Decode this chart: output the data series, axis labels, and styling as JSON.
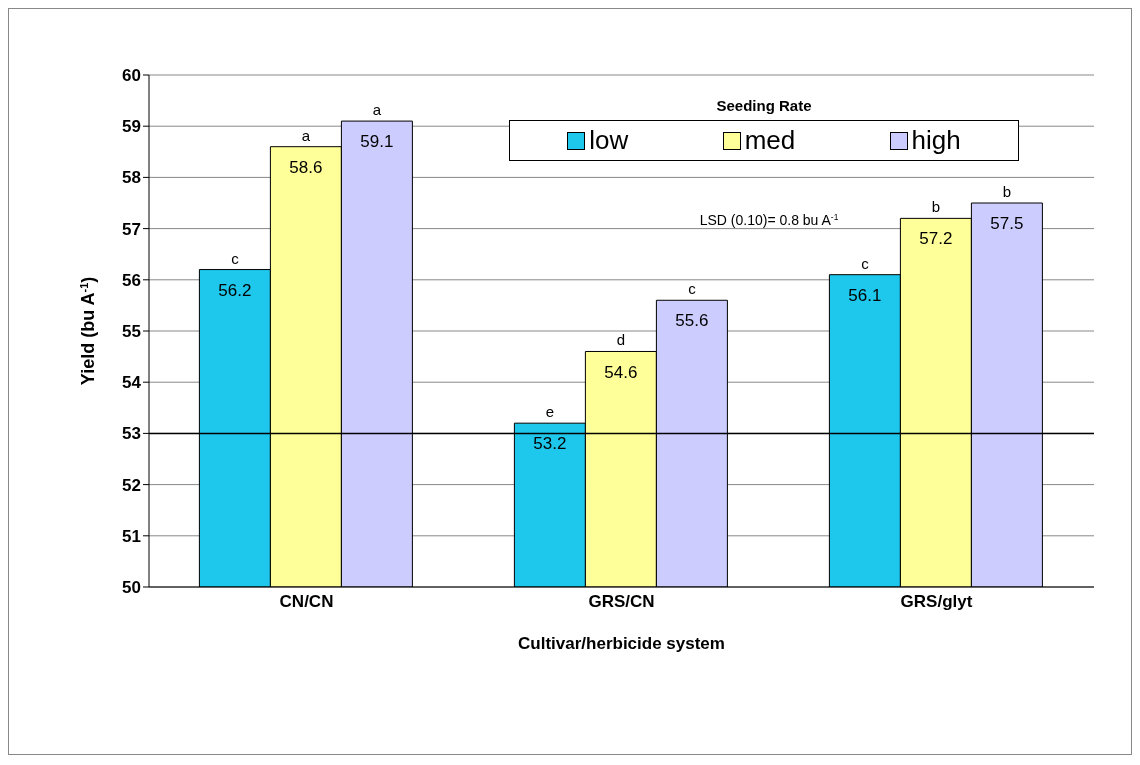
{
  "chart_data": {
    "type": "bar",
    "xlabel": "Cultivar/herbicide system",
    "ylabel": "Yield (bu A$^{-1}$)",
    "legend_title": "Seeding Rate",
    "categories": [
      "CN/CN",
      "GRS/CN",
      "GRS/glyt"
    ],
    "series": [
      {
        "name": "low",
        "color": "#1ec8ec",
        "values": [
          56.2,
          53.2,
          56.1
        ]
      },
      {
        "name": "med",
        "color": "#ffff99",
        "values": [
          58.6,
          54.6,
          57.2
        ]
      },
      {
        "name": "high",
        "color": "#ccccff",
        "values": [
          59.1,
          55.6,
          57.5
        ]
      }
    ],
    "ylim": [
      50,
      60
    ],
    "yticks": [
      50,
      51,
      52,
      53,
      54,
      55,
      56,
      57,
      58,
      59,
      60
    ],
    "grid": "y",
    "legend": "top right",
    "data_labels": true,
    "ref_lines": [
      {
        "axis": "y",
        "value": 53,
        "color": "#000000"
      }
    ],
    "annotations": [
      "LSD (0.10)= 0.8 bu A$^{-1}$",
      "c",
      "a",
      "a",
      "e",
      "d",
      "c",
      "c",
      "b",
      "b"
    ]
  }
}
